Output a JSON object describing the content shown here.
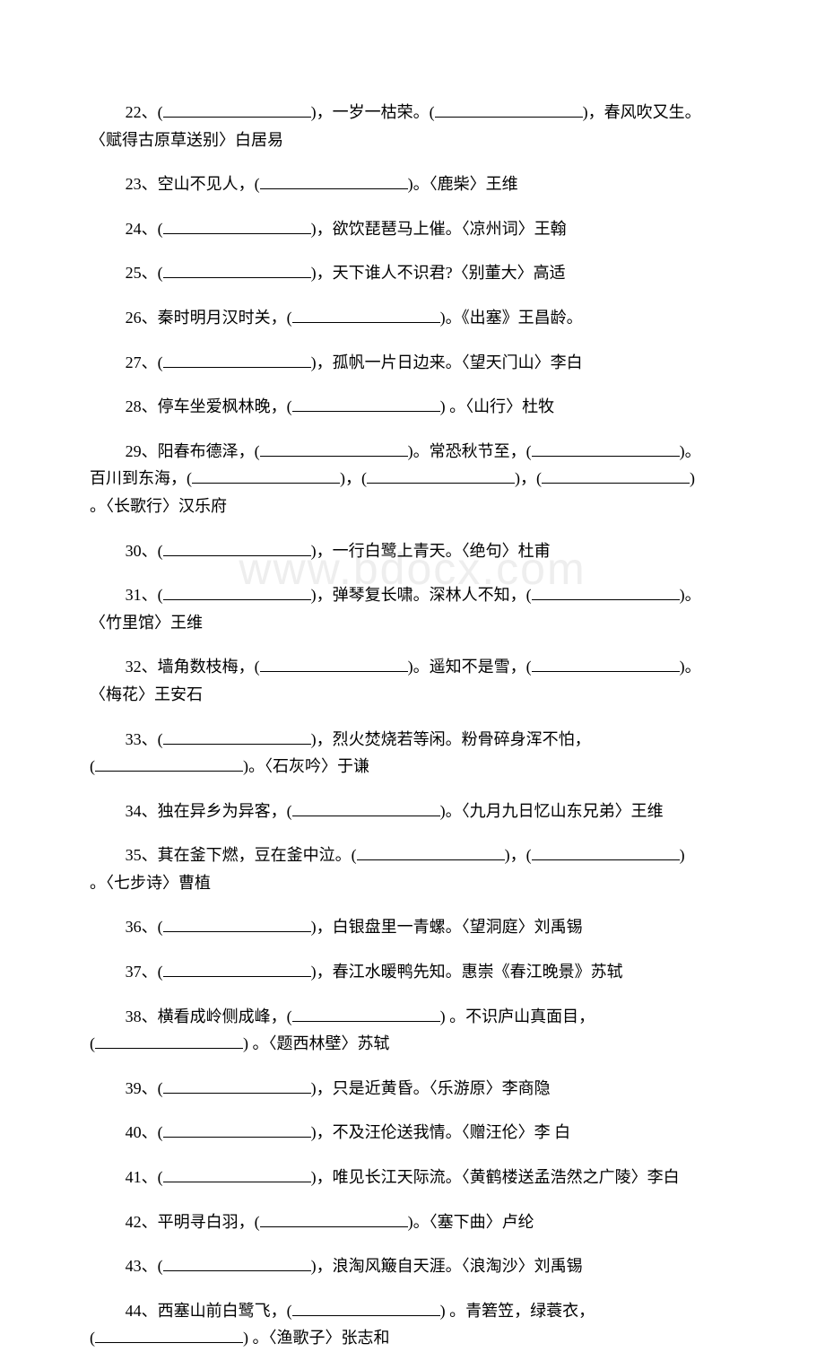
{
  "watermark": "www.bdocx.com",
  "questions": [
    {
      "num": "22",
      "lines": [
        {
          "indent": true,
          "segs": [
            {
              "t": "22、("
            },
            {
              "b": true
            },
            {
              "t": ")，一岁一枯荣。("
            },
            {
              "b": true
            },
            {
              "t": ")，春风吹又生。"
            }
          ]
        },
        {
          "indent": false,
          "segs": [
            {
              "t": "〈赋得古原草送别〉白居易"
            }
          ]
        }
      ]
    },
    {
      "num": "23",
      "lines": [
        {
          "indent": true,
          "segs": [
            {
              "t": "23、空山不见人，("
            },
            {
              "b": true
            },
            {
              "t": ")。〈鹿柴〉王维"
            }
          ]
        }
      ]
    },
    {
      "num": "24",
      "lines": [
        {
          "indent": true,
          "segs": [
            {
              "t": "24、("
            },
            {
              "b": true
            },
            {
              "t": ")，欲饮琵琶马上催。〈凉州词〉王翰"
            }
          ]
        }
      ]
    },
    {
      "num": "25",
      "lines": [
        {
          "indent": true,
          "segs": [
            {
              "t": "25、("
            },
            {
              "b": true
            },
            {
              "t": ")，天下谁人不识君?〈别董大〉高适"
            }
          ]
        }
      ]
    },
    {
      "num": "26",
      "lines": [
        {
          "indent": true,
          "segs": [
            {
              "t": "26、秦时明月汉时关，("
            },
            {
              "b": true
            },
            {
              "t": ")。《出塞》王昌龄。"
            }
          ]
        }
      ]
    },
    {
      "num": "27",
      "lines": [
        {
          "indent": true,
          "segs": [
            {
              "t": "27、("
            },
            {
              "b": true
            },
            {
              "t": ")，孤帆一片日边来。〈望天门山〉李白"
            }
          ]
        }
      ]
    },
    {
      "num": "28",
      "lines": [
        {
          "indent": true,
          "segs": [
            {
              "t": "28、停车坐爱枫林晚，("
            },
            {
              "b": true
            },
            {
              "t": ") 。〈山行〉杜牧"
            }
          ]
        }
      ]
    },
    {
      "num": "29",
      "lines": [
        {
          "indent": true,
          "segs": [
            {
              "t": "29、阳春布德泽，("
            },
            {
              "b": true
            },
            {
              "t": ")。常恐秋节至，("
            },
            {
              "b": true
            },
            {
              "t": ")。"
            }
          ]
        },
        {
          "indent": false,
          "segs": [
            {
              "t": "百川到东海，("
            },
            {
              "b": true
            },
            {
              "t": ")，("
            },
            {
              "b": true
            },
            {
              "t": ")，("
            },
            {
              "b": true
            },
            {
              "t": ")"
            }
          ]
        },
        {
          "indent": false,
          "segs": [
            {
              "t": "。〈长歌行〉汉乐府"
            }
          ]
        }
      ]
    },
    {
      "num": "30",
      "lines": [
        {
          "indent": true,
          "segs": [
            {
              "t": "30、("
            },
            {
              "b": true
            },
            {
              "t": ")，一行白鹭上青天。〈绝句〉杜甫"
            }
          ]
        }
      ]
    },
    {
      "num": "31",
      "lines": [
        {
          "indent": true,
          "segs": [
            {
              "t": "31、("
            },
            {
              "b": true
            },
            {
              "t": ")，弹琴复长啸。深林人不知，("
            },
            {
              "b": true
            },
            {
              "t": ")。"
            }
          ]
        },
        {
          "indent": false,
          "segs": [
            {
              "t": "〈竹里馆〉王维"
            }
          ]
        }
      ]
    },
    {
      "num": "32",
      "lines": [
        {
          "indent": true,
          "segs": [
            {
              "t": "32、墙角数枝梅，("
            },
            {
              "b": true
            },
            {
              "t": ")。遥知不是雪，("
            },
            {
              "b": true
            },
            {
              "t": ")。"
            }
          ]
        },
        {
          "indent": false,
          "segs": [
            {
              "t": "〈梅花〉王安石"
            }
          ]
        }
      ]
    },
    {
      "num": "33",
      "lines": [
        {
          "indent": true,
          "segs": [
            {
              "t": "33、("
            },
            {
              "b": true
            },
            {
              "t": ")，烈火焚烧若等闲。粉骨碎身浑不怕，"
            }
          ]
        },
        {
          "indent": false,
          "segs": [
            {
              "t": "("
            },
            {
              "b": true
            },
            {
              "t": ")。〈石灰吟〉于谦"
            }
          ]
        }
      ]
    },
    {
      "num": "34",
      "lines": [
        {
          "indent": true,
          "segs": [
            {
              "t": "34、独在异乡为异客，("
            },
            {
              "b": true
            },
            {
              "t": ")。〈九月九日忆山东兄弟〉王维"
            }
          ]
        }
      ]
    },
    {
      "num": "35",
      "lines": [
        {
          "indent": true,
          "segs": [
            {
              "t": "35、萁在釜下燃，豆在釜中泣。("
            },
            {
              "b": true
            },
            {
              "t": ")，("
            },
            {
              "b": true
            },
            {
              "t": ")"
            }
          ]
        },
        {
          "indent": false,
          "segs": [
            {
              "t": "。〈七步诗〉曹植"
            }
          ]
        }
      ]
    },
    {
      "num": "36",
      "lines": [
        {
          "indent": true,
          "segs": [
            {
              "t": "36、("
            },
            {
              "b": true
            },
            {
              "t": ")，白银盘里一青螺。〈望洞庭〉刘禹锡"
            }
          ]
        }
      ]
    },
    {
      "num": "37",
      "lines": [
        {
          "indent": true,
          "segs": [
            {
              "t": "37、("
            },
            {
              "b": true
            },
            {
              "t": ")，春江水暖鸭先知。惠崇《春江晚景》苏轼"
            }
          ]
        }
      ]
    },
    {
      "num": "38",
      "lines": [
        {
          "indent": true,
          "segs": [
            {
              "t": "38、横看成岭侧成峰，("
            },
            {
              "b": true
            },
            {
              "t": ") 。不识庐山真面目，"
            }
          ]
        },
        {
          "indent": false,
          "segs": [
            {
              "t": "("
            },
            {
              "b": true
            },
            {
              "t": ") 。〈题西林壁〉苏轼"
            }
          ]
        }
      ]
    },
    {
      "num": "39",
      "lines": [
        {
          "indent": true,
          "segs": [
            {
              "t": "39、("
            },
            {
              "b": true
            },
            {
              "t": ")，只是近黄昏。〈乐游原〉李商隐"
            }
          ]
        }
      ]
    },
    {
      "num": "40",
      "lines": [
        {
          "indent": true,
          "segs": [
            {
              "t": "40、("
            },
            {
              "b": true
            },
            {
              "t": ")，不及汪伦送我情。〈赠汪伦〉李  白"
            }
          ]
        }
      ]
    },
    {
      "num": "41",
      "lines": [
        {
          "indent": true,
          "segs": [
            {
              "t": "41、("
            },
            {
              "b": true
            },
            {
              "t": ")，唯见长江天际流。〈黄鹤楼送孟浩然之广陵〉李白"
            }
          ]
        }
      ]
    },
    {
      "num": "42",
      "lines": [
        {
          "indent": true,
          "segs": [
            {
              "t": "42、平明寻白羽，("
            },
            {
              "b": true
            },
            {
              "t": ")。〈塞下曲〉卢纶"
            }
          ]
        }
      ]
    },
    {
      "num": "43",
      "lines": [
        {
          "indent": true,
          "segs": [
            {
              "t": "43、("
            },
            {
              "b": true
            },
            {
              "t": ")，浪淘风簸自天涯。〈浪淘沙〉刘禹锡"
            }
          ]
        }
      ]
    },
    {
      "num": "44",
      "lines": [
        {
          "indent": true,
          "segs": [
            {
              "t": "44、西塞山前白鹭飞，("
            },
            {
              "b": true
            },
            {
              "t": ") 。青箬笠，绿蓑衣，"
            }
          ]
        },
        {
          "indent": false,
          "segs": [
            {
              "t": "("
            },
            {
              "b": true
            },
            {
              "t": ") 。〈渔歌子〉张志和"
            }
          ]
        }
      ]
    }
  ]
}
